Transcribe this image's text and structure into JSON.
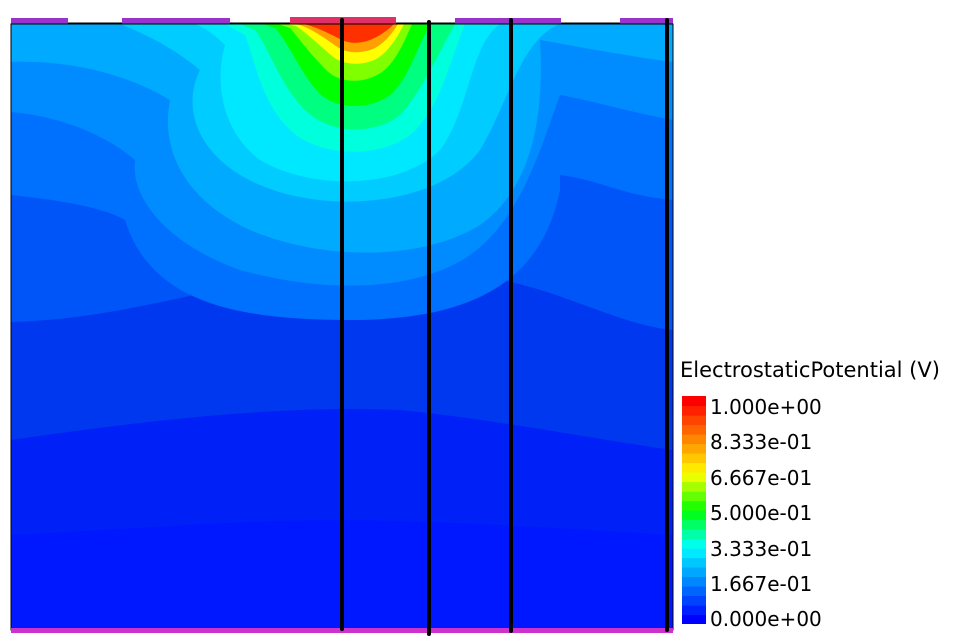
{
  "colorbar": {
    "title": "ElectrostaticPotential (V)",
    "ticks": [
      "1.000e+00",
      "8.333e-01",
      "6.667e-01",
      "5.000e-01",
      "3.333e-01",
      "1.667e-01",
      "0.000e+00"
    ],
    "range": [
      0,
      1
    ],
    "colormap": [
      "#0000ff",
      "#0080ff",
      "#00ffff",
      "#00ff00",
      "#ffff00",
      "#ff8000",
      "#ff0000"
    ]
  },
  "colors": {
    "contact": "#9933cc",
    "contact_top": "#ff3399",
    "bottom_contact": "#cc33cc",
    "cut_line": "#000000",
    "outline": "#000000"
  }
}
